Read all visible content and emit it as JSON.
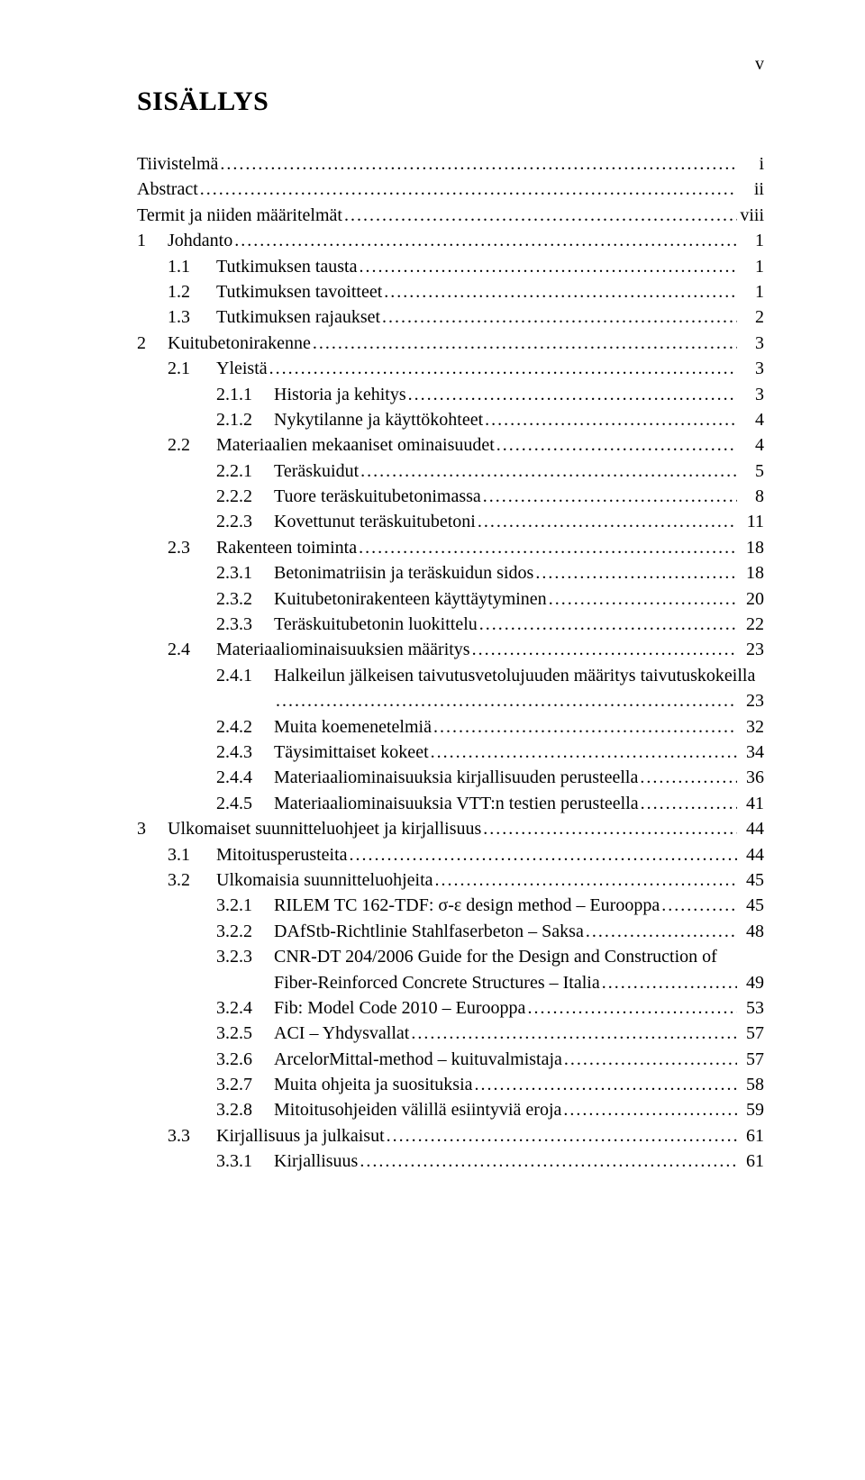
{
  "page_marker": "v",
  "title": "SISÄLLYS",
  "font": {
    "family": "Times New Roman",
    "title_size_pt": 22,
    "body_size_pt": 15,
    "color": "#000000",
    "background": "#ffffff"
  },
  "toc": [
    {
      "level": 0,
      "num": "",
      "label": "Tiivistelmä",
      "page": "i"
    },
    {
      "level": 0,
      "num": "",
      "label": "Abstract",
      "page": "ii"
    },
    {
      "level": 0,
      "num": "",
      "label": "Termit ja niiden määritelmät",
      "page": "viii"
    },
    {
      "level": 1,
      "num": "1",
      "label": "Johdanto",
      "page": "1"
    },
    {
      "level": 2,
      "num": "1.1",
      "label": "Tutkimuksen tausta",
      "page": "1"
    },
    {
      "level": 2,
      "num": "1.2",
      "label": "Tutkimuksen tavoitteet",
      "page": "1"
    },
    {
      "level": 2,
      "num": "1.3",
      "label": "Tutkimuksen rajaukset",
      "page": "2"
    },
    {
      "level": 1,
      "num": "2",
      "label": "Kuitubetonirakenne",
      "page": "3"
    },
    {
      "level": 2,
      "num": "2.1",
      "label": "Yleistä",
      "page": "3"
    },
    {
      "level": 3,
      "num": "2.1.1",
      "label": "Historia ja kehitys",
      "page": "3"
    },
    {
      "level": 3,
      "num": "2.1.2",
      "label": "Nykytilanne ja käyttökohteet",
      "page": "4"
    },
    {
      "level": 2,
      "num": "2.2",
      "label": "Materiaalien mekaaniset ominaisuudet",
      "page": "4"
    },
    {
      "level": 3,
      "num": "2.2.1",
      "label": "Teräskuidut",
      "page": "5"
    },
    {
      "level": 3,
      "num": "2.2.2",
      "label": "Tuore teräskuitubetonimassa",
      "page": "8"
    },
    {
      "level": 3,
      "num": "2.2.3",
      "label": "Kovettunut teräskuitubetoni",
      "page": "11"
    },
    {
      "level": 2,
      "num": "2.3",
      "label": "Rakenteen toiminta",
      "page": "18"
    },
    {
      "level": 3,
      "num": "2.3.1",
      "label": "Betonimatriisin ja teräskuidun sidos",
      "page": "18"
    },
    {
      "level": 3,
      "num": "2.3.2",
      "label": "Kuitubetonirakenteen käyttäytyminen",
      "page": "20"
    },
    {
      "level": 3,
      "num": "2.3.3",
      "label": "Teräskuitubetonin luokittelu",
      "page": "22"
    },
    {
      "level": 2,
      "num": "2.4",
      "label": "Materiaaliominaisuuksien määritys",
      "page": "23"
    },
    {
      "level": 3,
      "num": "2.4.1",
      "label": "Halkeilun jälkeisen taivutusvetolujuuden määritys taivutuskokeilla",
      "page": "23",
      "wrap": true
    },
    {
      "level": 3,
      "num": "2.4.2",
      "label": "Muita koemenetelmiä",
      "page": "32"
    },
    {
      "level": 3,
      "num": "2.4.3",
      "label": "Täysimittaiset kokeet",
      "page": "34"
    },
    {
      "level": 3,
      "num": "2.4.4",
      "label": "Materiaaliominaisuuksia kirjallisuuden perusteella",
      "page": "36"
    },
    {
      "level": 3,
      "num": "2.4.5",
      "label": "Materiaaliominaisuuksia VTT:n testien perusteella",
      "page": "41"
    },
    {
      "level": 1,
      "num": "3",
      "label": "Ulkomaiset suunnitteluohjeet ja kirjallisuus",
      "page": "44"
    },
    {
      "level": 2,
      "num": "3.1",
      "label": "Mitoitusperusteita",
      "page": "44"
    },
    {
      "level": 2,
      "num": "3.2",
      "label": "Ulkomaisia suunnitteluohjeita",
      "page": "45"
    },
    {
      "level": 3,
      "num": "3.2.1",
      "label": "RILEM TC 162-TDF: σ-ε design method – Eurooppa",
      "page": "45"
    },
    {
      "level": 3,
      "num": "3.2.2",
      "label": "DAfStb-Richtlinie Stahlfaserbeton – Saksa",
      "page": "48"
    },
    {
      "level": 3,
      "num": "3.2.3",
      "label": "CNR-DT 204/2006 Guide for the Design and Construction of",
      "page": "",
      "nodots": true
    },
    {
      "level": 3,
      "num": "",
      "label": "Fiber-Reinforced Concrete Structures – Italia",
      "page": "49",
      "continuation": true
    },
    {
      "level": 3,
      "num": "3.2.4",
      "label": "Fib: Model Code 2010 – Eurooppa",
      "page": "53"
    },
    {
      "level": 3,
      "num": "3.2.5",
      "label": "ACI – Yhdysvallat",
      "page": "57"
    },
    {
      "level": 3,
      "num": "3.2.6",
      "label": "ArcelorMittal-method – kuituvalmistaja",
      "page": "57"
    },
    {
      "level": 3,
      "num": "3.2.7",
      "label": "Muita ohjeita ja suosituksia",
      "page": "58"
    },
    {
      "level": 3,
      "num": "3.2.8",
      "label": "Mitoitusohjeiden välillä esiintyviä eroja",
      "page": "59"
    },
    {
      "level": 2,
      "num": "3.3",
      "label": "Kirjallisuus ja julkaisut",
      "page": "61"
    },
    {
      "level": 3,
      "num": "3.3.1",
      "label": "Kirjallisuus",
      "page": "61"
    }
  ]
}
